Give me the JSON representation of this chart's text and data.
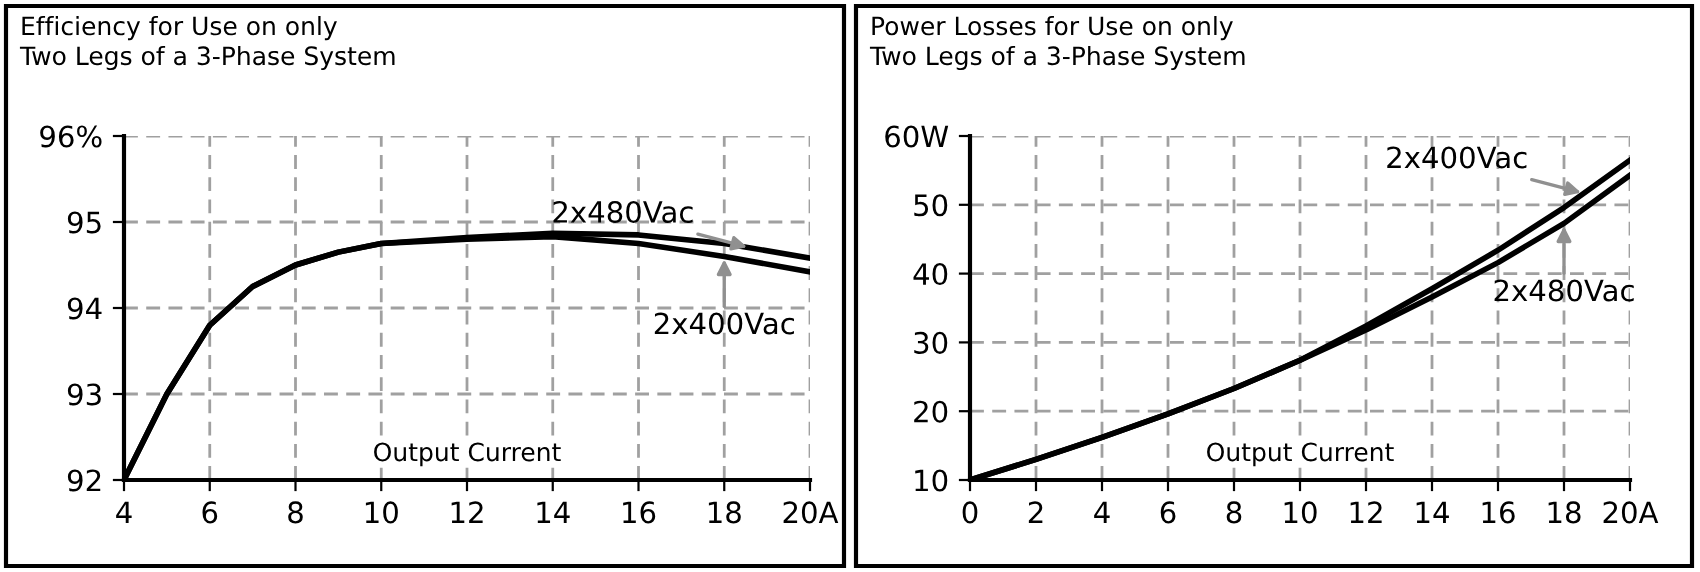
{
  "chart_data": [
    {
      "type": "line",
      "title": "Efficiency for Use on only\nTwo Legs of a 3-Phase System",
      "xlabel": "Output Current",
      "x": [
        4,
        5,
        6,
        7,
        8,
        9,
        10,
        12,
        14,
        16,
        18,
        20
      ],
      "series": [
        {
          "name": "2x480Vac",
          "color": "#000000",
          "values": [
            92.0,
            93.0,
            93.8,
            94.25,
            94.5,
            94.65,
            94.75,
            94.82,
            94.87,
            94.85,
            94.75,
            94.58
          ]
        },
        {
          "name": "2x400Vac",
          "color": "#000000",
          "values": [
            92.0,
            93.0,
            93.8,
            94.25,
            94.5,
            94.65,
            94.75,
            94.8,
            94.83,
            94.75,
            94.6,
            94.42
          ]
        }
      ],
      "xlim": [
        4,
        20
      ],
      "xticks": [
        4,
        6,
        8,
        10,
        12,
        14,
        16,
        18,
        {
          "value": 20,
          "label": "20A"
        }
      ],
      "ylim": [
        92,
        96
      ],
      "yticks": [
        92,
        93,
        94,
        95,
        {
          "value": 96,
          "label": "96%"
        }
      ],
      "grid": true,
      "legend": false,
      "marker": "none",
      "line_style": "solid"
    },
    {
      "type": "line",
      "title": "Power Losses for Use on only\nTwo Legs of a 3-Phase System",
      "xlabel": "Output Current",
      "x": [
        0,
        2,
        4,
        6,
        8,
        10,
        12,
        14,
        16,
        18,
        20
      ],
      "series": [
        {
          "name": "2x400Vac",
          "color": "#000000",
          "values": [
            10,
            13,
            16.2,
            19.6,
            23.3,
            27.4,
            32.4,
            37.8,
            43.4,
            49.6,
            56.5
          ]
        },
        {
          "name": "2x480Vac",
          "color": "#000000",
          "values": [
            10,
            13,
            16.2,
            19.6,
            23.3,
            27.4,
            31.8,
            36.6,
            41.6,
            47.3,
            54.3
          ]
        }
      ],
      "xlim": [
        0,
        20
      ],
      "xticks": [
        0,
        2,
        4,
        6,
        8,
        10,
        12,
        14,
        16,
        18,
        {
          "value": 20,
          "label": "20A"
        }
      ],
      "ylim": [
        10,
        60
      ],
      "yticks": [
        10,
        20,
        30,
        40,
        50,
        {
          "value": 60,
          "label": "60W"
        }
      ],
      "grid": true,
      "legend": false,
      "marker": "none",
      "line_style": "solid"
    }
  ]
}
